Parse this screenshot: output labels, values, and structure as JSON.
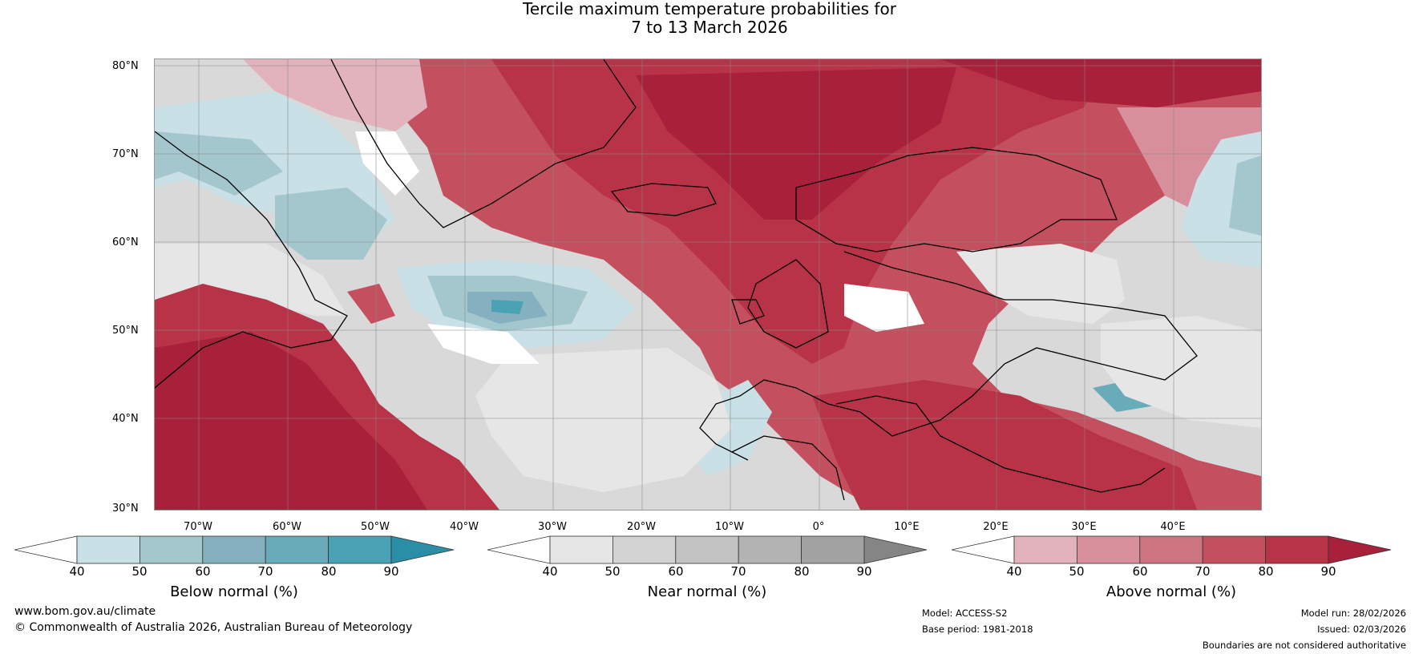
{
  "title": {
    "line1": "Tercile maximum temperature probabilities for",
    "line2": "7 to 13 March 2026"
  },
  "map": {
    "lat_labels": [
      "80°N",
      "70°N",
      "60°N",
      "50°N",
      "40°N",
      "30°N"
    ],
    "lon_labels": [
      "70°W",
      "60°W",
      "50°W",
      "40°W",
      "30°W",
      "20°W",
      "10°W",
      "0°",
      "10°E",
      "20°E",
      "30°E",
      "40°E"
    ]
  },
  "legends": [
    {
      "label": "Below normal (%)",
      "ticks": [
        "40",
        "50",
        "60",
        "70",
        "80",
        "90"
      ],
      "colors": [
        "#ffffff",
        "#c8e0e6",
        "#a4c7ce",
        "#84b0bf",
        "#6aabba",
        "#4aa2b4",
        "#2a8fa6"
      ]
    },
    {
      "label": "Near normal (%)",
      "ticks": [
        "40",
        "50",
        "60",
        "70",
        "80",
        "90"
      ],
      "colors": [
        "#ffffff",
        "#e6e6e6",
        "#d3d3d3",
        "#c3c3c3",
        "#b3b3b3",
        "#a2a2a2",
        "#858585"
      ]
    },
    {
      "label": "Above normal (%)",
      "ticks": [
        "40",
        "50",
        "60",
        "70",
        "80",
        "90"
      ],
      "colors": [
        "#ffffff",
        "#e2b3bc",
        "#d88f9c",
        "#cc7480",
        "#c4505f",
        "#b83347",
        "#a8203a"
      ]
    }
  ],
  "footer": {
    "website": "www.bom.gov.au/climate",
    "copyright": "© Commonwealth of Australia 2026, Australian Bureau of Meteorology",
    "model": "Model: ACCESS-S2",
    "base_period": "Base period: 1981-2018",
    "model_run": "Model run: 28/02/2026",
    "issued": "Issued: 02/03/2026",
    "disclaimer": "Boundaries are not considered authoritative"
  }
}
